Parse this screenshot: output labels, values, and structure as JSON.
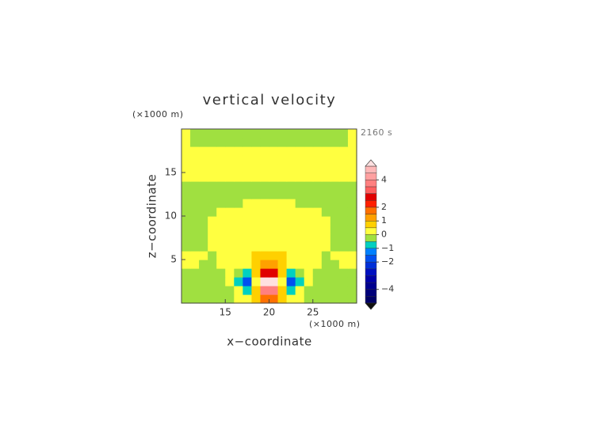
{
  "chart_data": {
    "type": "contour",
    "title": "vertical velocity",
    "y_unit": "(×1000 m)",
    "x_unit": "(×1000 m)",
    "time_label": "2160 s",
    "x_label": "x−coordinate",
    "y_label": "z−coordinate",
    "xlim": [
      10,
      30
    ],
    "ylim": [
      0,
      20
    ],
    "xticks": [
      15,
      20,
      25
    ],
    "yticks": [
      5,
      10,
      15
    ],
    "x": [
      10.5,
      11.5,
      12.5,
      13.5,
      14.5,
      15.5,
      16.5,
      17.5,
      18.5,
      19.5,
      20.5,
      21.5,
      22.5,
      23.5,
      24.5,
      25.5,
      26.5,
      27.5,
      28.5,
      29.5
    ],
    "y": [
      0.5,
      1.5,
      2.5,
      3.5,
      4.5,
      5.5,
      6.5,
      7.5,
      8.5,
      9.5,
      10.5,
      11.5,
      12.5,
      13.5,
      14.5,
      15.5,
      16.5,
      17.5,
      18.5,
      19.5
    ],
    "z": [
      [
        -0.25,
        -0.25,
        -0.25,
        -0.25,
        -0.25,
        -0.25,
        0.25,
        0.25,
        0.75,
        1.75,
        1.75,
        0.75,
        0.25,
        0.25,
        -0.25,
        -0.25,
        -0.25,
        -0.25,
        -0.25,
        -0.25
      ],
      [
        -0.25,
        -0.25,
        -0.25,
        -0.25,
        -0.25,
        -0.25,
        0.25,
        -0.75,
        0.75,
        3.5,
        3.5,
        0.75,
        -0.75,
        0.25,
        -0.25,
        -0.25,
        -0.25,
        -0.25,
        -0.25,
        -0.25
      ],
      [
        -0.25,
        -0.25,
        -0.25,
        -0.25,
        -0.25,
        0.25,
        -0.75,
        -1.75,
        0.25,
        5.25,
        5.25,
        0.25,
        -1.75,
        -0.75,
        0.25,
        -0.25,
        -0.25,
        -0.25,
        -0.25,
        -0.25
      ],
      [
        -0.25,
        -0.25,
        -0.25,
        -0.25,
        -0.25,
        0.25,
        -0.25,
        -0.75,
        0.75,
        2.75,
        2.75,
        0.75,
        -0.75,
        -0.25,
        0.25,
        -0.25,
        -0.25,
        -0.25,
        -0.25,
        -0.25
      ],
      [
        0.25,
        0.25,
        -0.25,
        -0.25,
        0.25,
        0.25,
        0.25,
        0.25,
        0.75,
        1.25,
        1.25,
        0.75,
        0.25,
        0.25,
        0.25,
        0.25,
        -0.25,
        -0.25,
        0.25,
        0.25
      ],
      [
        0.25,
        0.25,
        0.25,
        -0.25,
        0.25,
        0.25,
        0.25,
        0.25,
        0.75,
        0.75,
        0.75,
        0.75,
        0.25,
        0.25,
        0.25,
        0.25,
        -0.25,
        0.25,
        0.25,
        0.25
      ],
      [
        -0.25,
        -0.25,
        -0.25,
        0.25,
        0.25,
        0.25,
        0.25,
        0.25,
        0.25,
        0.25,
        0.25,
        0.25,
        0.25,
        0.25,
        0.25,
        0.25,
        0.25,
        -0.25,
        -0.25,
        -0.25
      ],
      [
        -0.25,
        -0.25,
        -0.25,
        0.25,
        0.25,
        0.25,
        0.25,
        0.25,
        0.25,
        0.25,
        0.25,
        0.25,
        0.25,
        0.25,
        0.25,
        0.25,
        0.25,
        -0.25,
        -0.25,
        -0.25
      ],
      [
        -0.25,
        -0.25,
        -0.25,
        0.25,
        0.25,
        0.25,
        0.25,
        0.25,
        0.25,
        0.25,
        0.25,
        0.25,
        0.25,
        0.25,
        0.25,
        0.25,
        0.25,
        -0.25,
        -0.25,
        -0.25
      ],
      [
        -0.25,
        -0.25,
        -0.25,
        0.25,
        0.25,
        0.25,
        0.25,
        0.25,
        0.25,
        0.25,
        0.25,
        0.25,
        0.25,
        0.25,
        0.25,
        0.25,
        0.25,
        -0.25,
        -0.25,
        -0.25
      ],
      [
        -0.25,
        -0.25,
        -0.25,
        -0.25,
        0.25,
        0.25,
        0.25,
        0.25,
        0.25,
        0.25,
        0.25,
        0.25,
        0.25,
        0.25,
        0.25,
        0.25,
        -0.25,
        -0.25,
        -0.25,
        -0.25
      ],
      [
        -0.25,
        -0.25,
        -0.25,
        -0.25,
        -0.25,
        -0.25,
        -0.25,
        0.25,
        0.25,
        0.25,
        0.25,
        0.25,
        0.25,
        -0.25,
        -0.25,
        -0.25,
        -0.25,
        -0.25,
        -0.25,
        -0.25
      ],
      [
        -0.25,
        -0.25,
        -0.25,
        -0.25,
        -0.25,
        -0.25,
        -0.25,
        -0.25,
        -0.25,
        -0.25,
        -0.25,
        -0.25,
        -0.25,
        -0.25,
        -0.25,
        -0.25,
        -0.25,
        -0.25,
        -0.25,
        -0.25
      ],
      [
        -0.25,
        -0.25,
        -0.25,
        -0.25,
        -0.25,
        -0.25,
        -0.25,
        -0.25,
        -0.25,
        -0.25,
        -0.25,
        -0.25,
        -0.25,
        -0.25,
        -0.25,
        -0.25,
        -0.25,
        -0.25,
        -0.25,
        -0.25
      ],
      [
        0.25,
        0.25,
        0.25,
        0.25,
        0.25,
        0.25,
        0.25,
        0.25,
        0.25,
        0.25,
        0.25,
        0.25,
        0.25,
        0.25,
        0.25,
        0.25,
        0.25,
        0.25,
        0.25,
        0.25
      ],
      [
        0.25,
        0.25,
        0.25,
        0.25,
        0.25,
        0.25,
        0.25,
        0.25,
        0.25,
        0.25,
        0.25,
        0.25,
        0.25,
        0.25,
        0.25,
        0.25,
        0.25,
        0.25,
        0.25,
        0.25
      ],
      [
        0.25,
        0.25,
        0.25,
        0.25,
        0.25,
        0.25,
        0.25,
        0.25,
        0.25,
        0.25,
        0.25,
        0.25,
        0.25,
        0.25,
        0.25,
        0.25,
        0.25,
        0.25,
        0.25,
        0.25
      ],
      [
        0.25,
        0.25,
        0.25,
        0.25,
        0.25,
        0.25,
        0.25,
        0.25,
        0.25,
        0.25,
        0.25,
        0.25,
        0.25,
        0.25,
        0.25,
        0.25,
        0.25,
        0.25,
        0.25,
        0.25
      ],
      [
        0.25,
        -0.25,
        -0.25,
        -0.25,
        -0.25,
        -0.25,
        -0.25,
        -0.25,
        -0.25,
        -0.25,
        -0.25,
        -0.25,
        -0.25,
        -0.25,
        -0.25,
        -0.25,
        -0.25,
        -0.25,
        -0.25,
        0.25
      ],
      [
        0.25,
        -0.25,
        -0.25,
        -0.25,
        -0.25,
        -0.25,
        -0.25,
        -0.25,
        -0.25,
        -0.25,
        -0.25,
        -0.25,
        -0.25,
        -0.25,
        -0.25,
        -0.25,
        -0.25,
        -0.25,
        -0.25,
        0.25
      ]
    ],
    "colorbar": {
      "levels": [
        -5,
        -4.5,
        -4,
        -3.5,
        -3,
        -2.5,
        -2,
        -1.5,
        -1,
        -0.5,
        0,
        0.5,
        1,
        1.5,
        2,
        2.5,
        3,
        3.5,
        4,
        4.5,
        5
      ],
      "colors": [
        "#101010",
        "#000066",
        "#00007a",
        "#00008f",
        "#0000a8",
        "#0010c0",
        "#0030d8",
        "#0050f0",
        "#0080ff",
        "#00d0c0",
        "#a0e040",
        "#ffff40",
        "#ffd000",
        "#ffa000",
        "#ff7000",
        "#ff2000",
        "#e00000",
        "#ff6060",
        "#ff8080",
        "#ffa0a0",
        "#ffb8b8",
        "#ffe0e0"
      ],
      "ticks": [
        4,
        2,
        1,
        0,
        {
          "value": -1,
          "label": "−1"
        },
        {
          "value": -2,
          "label": "−2"
        },
        {
          "value": -4,
          "label": "−4"
        }
      ]
    }
  }
}
